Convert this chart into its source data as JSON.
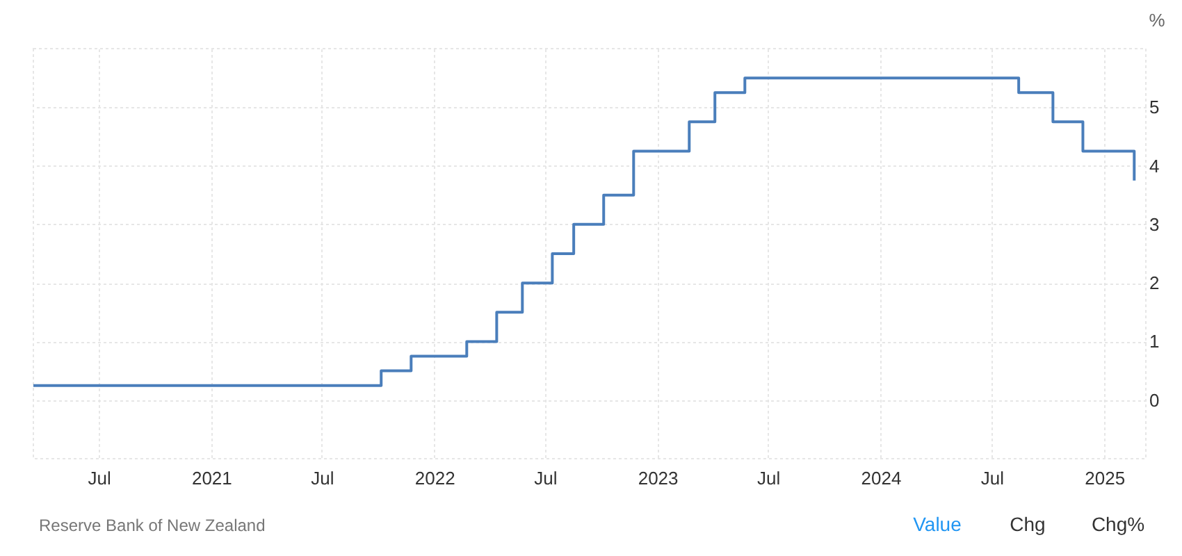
{
  "chart_data": {
    "type": "step",
    "ylabel": "%",
    "x": [
      "2020-03-16",
      "2021-10-06",
      "2021-11-24",
      "2022-02-23",
      "2022-04-13",
      "2022-05-25",
      "2022-07-13",
      "2022-08-17",
      "2022-10-05",
      "2022-11-23",
      "2023-02-22",
      "2023-04-05",
      "2023-05-24",
      "2024-08-14",
      "2024-10-09",
      "2024-11-27",
      "2025-02-19"
    ],
    "series": [
      {
        "color": "#4a7ebb",
        "values": [
          0.25,
          0.5,
          0.75,
          1.0,
          1.5,
          2.0,
          2.5,
          3.0,
          3.5,
          4.25,
          4.75,
          5.25,
          5.5,
          5.25,
          4.75,
          4.25,
          3.75
        ]
      }
    ],
    "xlim": [
      "2020-03-16",
      "2025-03-10"
    ],
    "xticks": [
      {
        "value": "2020-07-01",
        "label": "Jul"
      },
      {
        "value": "2021-01-01",
        "label": "2021"
      },
      {
        "value": "2021-07-01",
        "label": "Jul"
      },
      {
        "value": "2022-01-01",
        "label": "2022"
      },
      {
        "value": "2022-07-01",
        "label": "Jul"
      },
      {
        "value": "2023-01-01",
        "label": "2023"
      },
      {
        "value": "2023-07-01",
        "label": "Jul"
      },
      {
        "value": "2024-01-01",
        "label": "2024"
      },
      {
        "value": "2024-07-01",
        "label": "Jul"
      },
      {
        "value": "2025-01-01",
        "label": "2025"
      }
    ],
    "ylim": [
      -1,
      6
    ],
    "yticks": [
      0,
      1,
      2,
      3,
      4,
      5
    ],
    "grid": true,
    "line_style": "solid",
    "marker": "none",
    "annotations": [
      "Reserve Bank of New Zealand",
      "Value",
      "Chg",
      "Chg%"
    ]
  }
}
